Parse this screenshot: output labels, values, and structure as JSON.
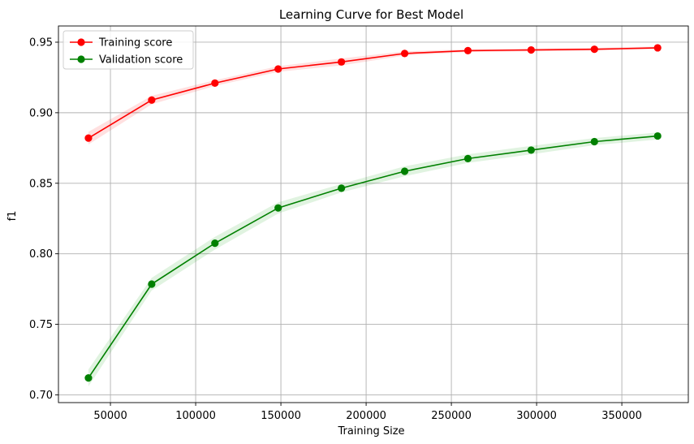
{
  "chart_data": {
    "type": "line",
    "title": "Learning Curve for Best Model",
    "xlabel": "Training Size",
    "ylabel": "f1",
    "xlim": [
      19500,
      389000
    ],
    "ylim": [
      0.6945,
      0.9615
    ],
    "xticks": [
      50000,
      100000,
      150000,
      200000,
      250000,
      300000,
      350000
    ],
    "yticks": [
      0.7,
      0.75,
      0.8,
      0.85,
      0.9,
      0.95
    ],
    "xtick_labels": [
      "50000",
      "100000",
      "150000",
      "200000",
      "250000",
      "300000",
      "350000"
    ],
    "ytick_labels": [
      "0.70",
      "0.75",
      "0.80",
      "0.85",
      "0.90",
      "0.95"
    ],
    "grid": true,
    "legend_position": "top-left",
    "x": [
      37100,
      74200,
      111300,
      148400,
      185500,
      222600,
      259700,
      296800,
      333900,
      371000
    ],
    "series": [
      {
        "name": "Training score",
        "color": "#ff0000",
        "band_color": "#ff0000",
        "values": [
          0.882,
          0.909,
          0.921,
          0.931,
          0.936,
          0.942,
          0.944,
          0.9445,
          0.945,
          0.946
        ],
        "band_half_width": [
          0.0045,
          0.003,
          0.002,
          0.002,
          0.0025,
          0.0015,
          0.001,
          0.001,
          0.001,
          0.001
        ]
      },
      {
        "name": "Validation score",
        "color": "#008000",
        "band_color": "#00a000",
        "values": [
          0.712,
          0.7785,
          0.8075,
          0.8325,
          0.8465,
          0.8585,
          0.8675,
          0.8735,
          0.8795,
          0.8835
        ],
        "band_half_width": [
          0.006,
          0.0045,
          0.0045,
          0.004,
          0.003,
          0.0035,
          0.003,
          0.003,
          0.0025,
          0.0025
        ]
      }
    ]
  }
}
